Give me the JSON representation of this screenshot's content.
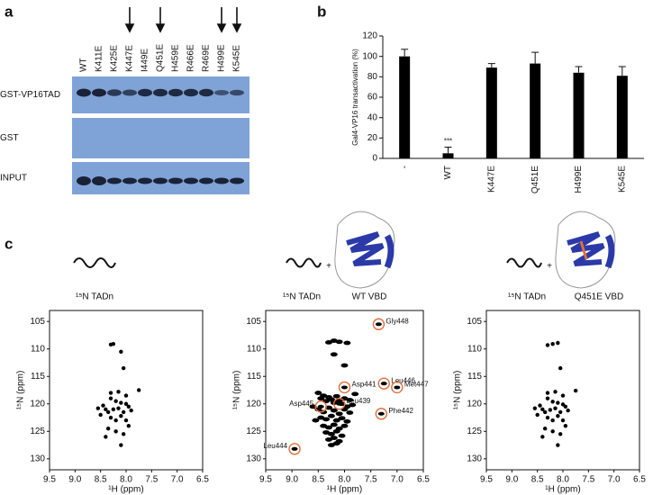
{
  "panel_labels": [
    "a",
    "b",
    "c"
  ],
  "blot": {
    "lanes": [
      "WT",
      "K411E",
      "K425E",
      "K447E",
      "I449E",
      "Q451E",
      "H459E",
      "R466E",
      "R469E",
      "H499E",
      "K545E"
    ],
    "rows": [
      "GST-VP16TAD",
      "GST",
      "INPUT"
    ]
  },
  "captions": {
    "tadn": "¹⁵N TADn",
    "plus": "+",
    "wt": "WT VBD",
    "mut": "Q451E VBD"
  },
  "chart_data": [
    {
      "type": "bar",
      "y_label": "Gal4-VP16 transactivation (%)",
      "categories": [
        "-",
        "WT",
        "K447E",
        "Q451E",
        "H499E",
        "K545E"
      ],
      "values": [
        100,
        5,
        89,
        93,
        84,
        81
      ],
      "errors": [
        7,
        6,
        4,
        11,
        6,
        9
      ],
      "color": "#000000",
      "ylim": [
        0,
        120
      ],
      "yticks": [
        0,
        20,
        40,
        60,
        80,
        100,
        120
      ],
      "annotations": [
        {
          "text": "***",
          "x": "WT"
        }
      ]
    },
    {
      "type": "scatter",
      "x_label": "¹H (ppm)",
      "y_label": "¹⁵N (ppm)",
      "color": "#000000",
      "xlim": [
        9.5,
        6.5
      ],
      "ylim": [
        132,
        103
      ],
      "xticks": [
        9.5,
        {
          "value": 9,
          "label": "9.0"
        },
        8.5,
        {
          "value": 8,
          "label": "8.0"
        },
        7.5,
        {
          "value": 7,
          "label": "7.0"
        },
        6.5
      ],
      "yticks": [
        105,
        110,
        115,
        120,
        125,
        130
      ],
      "x": [
        8.3,
        8.25,
        8.1,
        8.05,
        7.75,
        8.3,
        8.2,
        8.1,
        8.0,
        7.95,
        8.4,
        8.35,
        8.25,
        8.15,
        8.05,
        7.9,
        8.45,
        8.5,
        8.3,
        8.2,
        8.1,
        8.0,
        7.95,
        8.35,
        8.2,
        8.05,
        8.4,
        8.1,
        8.3,
        8.15,
        8.0,
        8.55
      ],
      "y": [
        109.2,
        109.1,
        110.5,
        113.5,
        117.5,
        119,
        119.5,
        119.8,
        120,
        120.5,
        121,
        121.5,
        121,
        120.8,
        121.5,
        121.2,
        120.3,
        122,
        122.5,
        123,
        122.2,
        123,
        124,
        124.5,
        125,
        125.5,
        126,
        127.5,
        118,
        117.8,
        118.5,
        120.8
      ]
    },
    {
      "type": "scatter",
      "x_label": "¹H (ppm)",
      "y_label": "¹⁵N (ppm)",
      "color": "#000000",
      "xlim": [
        9.5,
        6.5
      ],
      "ylim": [
        132,
        103
      ],
      "xticks": [
        9.5,
        {
          "value": 9,
          "label": "9.0"
        },
        8.5,
        {
          "value": 8,
          "label": "8.0"
        },
        7.5,
        {
          "value": 7,
          "label": "7.0"
        },
        6.5
      ],
      "yticks": [
        105,
        110,
        115,
        120,
        125,
        130
      ],
      "x": [
        8.3,
        8.2,
        8.1,
        7.95,
        8.2,
        8.0,
        8.5,
        8.45,
        8.4,
        8.35,
        8.3,
        8.25,
        8.2,
        8.15,
        8.1,
        8.05,
        8.0,
        7.95,
        7.9,
        7.85,
        8.5,
        8.4,
        8.3,
        8.2,
        8.1,
        8.0,
        7.9,
        8.45,
        8.35,
        8.25,
        8.15,
        8.05,
        7.95,
        8.4,
        8.3,
        8.2,
        8.1,
        8.0,
        8.35,
        8.25,
        8.15,
        8.05,
        8.3,
        8.2,
        8.1,
        8.25,
        8.15,
        7.8,
        8.6,
        8.55
      ],
      "y": [
        108.8,
        108.5,
        108.7,
        108.9,
        111,
        113,
        118,
        119,
        118.5,
        119.5,
        118.8,
        119.2,
        119.8,
        118.6,
        119.4,
        120,
        119,
        120.5,
        119.3,
        120.2,
        121,
        121.5,
        120.7,
        121.2,
        121.8,
        121,
        121.6,
        122.5,
        122.8,
        122.2,
        123,
        122.6,
        123.2,
        124,
        124.3,
        123.8,
        124.5,
        124,
        125.2,
        125.5,
        125,
        125.8,
        126.5,
        126.2,
        126.8,
        127.5,
        127.2,
        118.2,
        120.5,
        123
      ],
      "annotation_color": "#e0703a",
      "annotations": [
        {
          "text": "Gly448",
          "x": 7.35,
          "y": 105.5
        },
        {
          "text": "Asp441",
          "x": 8.0,
          "y": 117
        },
        {
          "text": "Leu446",
          "x": 7.25,
          "y": 116.3
        },
        {
          "text": "Met447",
          "x": 7.0,
          "y": 117
        },
        {
          "text": "Asp445",
          "x": 8.45,
          "y": 120.5
        },
        {
          "text": "Leu439",
          "x": 8.1,
          "y": 120
        },
        {
          "text": "Phe442",
          "x": 7.3,
          "y": 121.8
        },
        {
          "text": "Leu444",
          "x": 8.95,
          "y": 128.2
        }
      ]
    },
    {
      "type": "scatter",
      "x_label": "¹H (ppm)",
      "y_label": "¹⁵N (ppm)",
      "color": "#000000",
      "xlim": [
        9.5,
        6.5
      ],
      "ylim": [
        132,
        103
      ],
      "xticks": [
        9.5,
        {
          "value": 9,
          "label": "9.0"
        },
        8.5,
        {
          "value": 8,
          "label": "8.0"
        },
        7.5,
        {
          "value": 7,
          "label": "7.0"
        },
        6.5
      ],
      "yticks": [
        105,
        110,
        115,
        120,
        125,
        130
      ],
      "x": [
        8.3,
        8.2,
        8.1,
        8.05,
        7.75,
        8.3,
        8.2,
        8.1,
        8.0,
        7.95,
        8.4,
        8.35,
        8.25,
        8.15,
        8.05,
        7.9,
        8.45,
        8.5,
        8.3,
        8.2,
        8.1,
        8.0,
        7.95,
        8.35,
        8.2,
        8.05,
        8.4,
        8.1,
        8.3,
        8.15,
        8.0,
        8.55
      ],
      "y": [
        109.3,
        109.1,
        108.9,
        113.5,
        117.6,
        119,
        119.6,
        119.8,
        120.1,
        120.5,
        121,
        121.5,
        121.1,
        120.8,
        121.5,
        121.2,
        120.3,
        122,
        122.5,
        123,
        122.2,
        123,
        124,
        124.5,
        125,
        125.5,
        126,
        127.5,
        118,
        117.8,
        118.5,
        120.8
      ]
    }
  ]
}
